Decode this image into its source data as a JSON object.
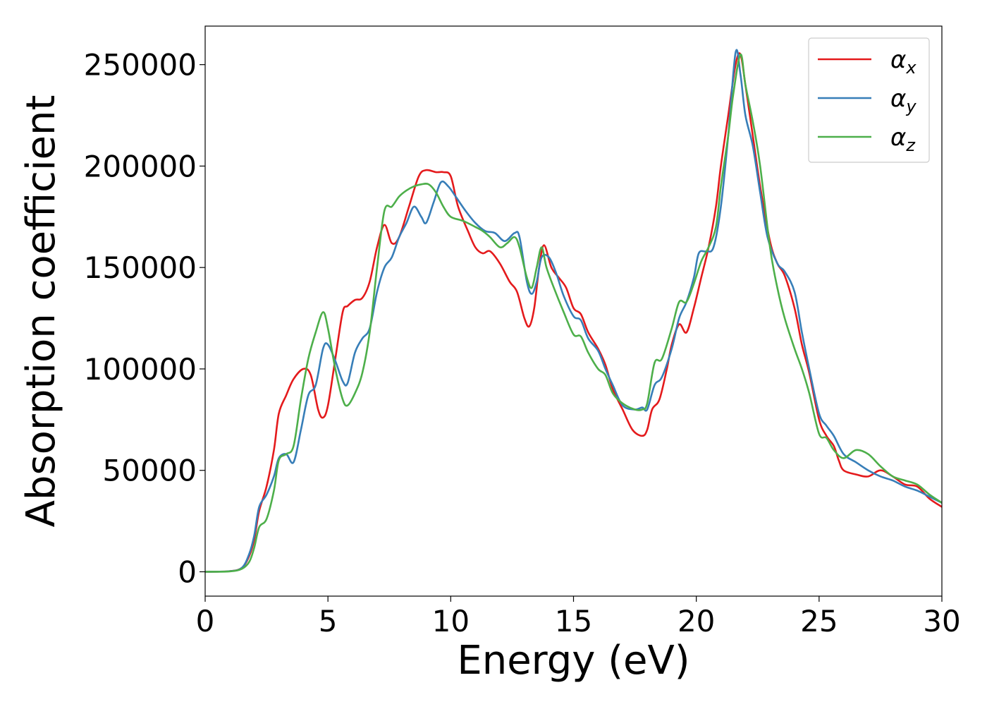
{
  "chart_data": {
    "type": "line",
    "title": "",
    "xlabel": "Energy (eV)",
    "ylabel": "Absorption coefficient",
    "xlim": [
      0,
      30
    ],
    "ylim": [
      -12000,
      269000
    ],
    "xticks": [
      0,
      5,
      10,
      15,
      20,
      25,
      30
    ],
    "xtick_labels": [
      "0",
      "5",
      "10",
      "15",
      "20",
      "25",
      "30"
    ],
    "yticks": [
      0,
      50000,
      100000,
      150000,
      200000,
      250000
    ],
    "ytick_labels": [
      "0",
      "50000",
      "100000",
      "150000",
      "200000",
      "250000"
    ],
    "grid": false,
    "legend_position": "top-right",
    "series": [
      {
        "name": "αx",
        "legend_symbol": "α",
        "legend_sub": "x",
        "color": "#e41a1c",
        "points": [
          [
            0,
            0
          ],
          [
            1,
            300
          ],
          [
            1.5,
            2000
          ],
          [
            1.8,
            8000
          ],
          [
            2.0,
            16000
          ],
          [
            2.2,
            30000
          ],
          [
            2.5,
            42000
          ],
          [
            2.8,
            60000
          ],
          [
            3.0,
            78000
          ],
          [
            3.3,
            87000
          ],
          [
            3.6,
            95000
          ],
          [
            4.0,
            100000
          ],
          [
            4.3,
            97000
          ],
          [
            4.6,
            80000
          ],
          [
            4.8,
            76000
          ],
          [
            5.0,
            82000
          ],
          [
            5.3,
            105000
          ],
          [
            5.6,
            128000
          ],
          [
            5.8,
            131000
          ],
          [
            6.1,
            134000
          ],
          [
            6.4,
            135000
          ],
          [
            6.7,
            143000
          ],
          [
            7.0,
            160000
          ],
          [
            7.3,
            171000
          ],
          [
            7.6,
            162000
          ],
          [
            7.9,
            165000
          ],
          [
            8.3,
            180000
          ],
          [
            8.7,
            195000
          ],
          [
            9.0,
            198000
          ],
          [
            9.4,
            197000
          ],
          [
            9.7,
            197000
          ],
          [
            10.0,
            195000
          ],
          [
            10.3,
            180000
          ],
          [
            10.7,
            168000
          ],
          [
            11.0,
            160000
          ],
          [
            11.3,
            157000
          ],
          [
            11.6,
            158000
          ],
          [
            12.0,
            152000
          ],
          [
            12.4,
            143000
          ],
          [
            12.7,
            138000
          ],
          [
            13.0,
            125000
          ],
          [
            13.2,
            121000
          ],
          [
            13.4,
            130000
          ],
          [
            13.6,
            150000
          ],
          [
            13.8,
            161000
          ],
          [
            14.1,
            150000
          ],
          [
            14.4,
            145000
          ],
          [
            14.7,
            140000
          ],
          [
            15.0,
            130000
          ],
          [
            15.3,
            127000
          ],
          [
            15.6,
            118000
          ],
          [
            16.0,
            110000
          ],
          [
            16.3,
            102000
          ],
          [
            16.6,
            90000
          ],
          [
            17.0,
            80000
          ],
          [
            17.4,
            70000
          ],
          [
            17.8,
            67000
          ],
          [
            18.0,
            70000
          ],
          [
            18.2,
            80000
          ],
          [
            18.5,
            85000
          ],
          [
            18.8,
            100000
          ],
          [
            19.0,
            112000
          ],
          [
            19.3,
            122000
          ],
          [
            19.6,
            118000
          ],
          [
            19.9,
            130000
          ],
          [
            20.2,
            145000
          ],
          [
            20.5,
            160000
          ],
          [
            20.8,
            180000
          ],
          [
            21.0,
            200000
          ],
          [
            21.3,
            225000
          ],
          [
            21.6,
            250000
          ],
          [
            21.8,
            255000
          ],
          [
            22.0,
            240000
          ],
          [
            22.3,
            215000
          ],
          [
            22.6,
            190000
          ],
          [
            23.0,
            163000
          ],
          [
            23.3,
            152000
          ],
          [
            23.6,
            146000
          ],
          [
            24.0,
            130000
          ],
          [
            24.3,
            112000
          ],
          [
            24.6,
            98000
          ],
          [
            25.0,
            75000
          ],
          [
            25.3,
            67000
          ],
          [
            25.6,
            62000
          ],
          [
            25.8,
            55000
          ],
          [
            26.0,
            50000
          ],
          [
            26.5,
            48000
          ],
          [
            27.0,
            47000
          ],
          [
            27.5,
            50000
          ],
          [
            28.0,
            47000
          ],
          [
            28.5,
            43000
          ],
          [
            29.0,
            42000
          ],
          [
            29.5,
            36000
          ],
          [
            30.0,
            32000
          ]
        ]
      },
      {
        "name": "αy",
        "legend_symbol": "α",
        "legend_sub": "y",
        "color": "#377eb8",
        "points": [
          [
            0,
            0
          ],
          [
            1,
            300
          ],
          [
            1.5,
            2000
          ],
          [
            1.8,
            9000
          ],
          [
            2.0,
            18000
          ],
          [
            2.2,
            32000
          ],
          [
            2.5,
            38000
          ],
          [
            2.8,
            47000
          ],
          [
            3.0,
            56000
          ],
          [
            3.3,
            58000
          ],
          [
            3.6,
            54000
          ],
          [
            3.9,
            70000
          ],
          [
            4.2,
            87000
          ],
          [
            4.5,
            92000
          ],
          [
            4.8,
            110000
          ],
          [
            5.0,
            112000
          ],
          [
            5.3,
            104000
          ],
          [
            5.6,
            94000
          ],
          [
            5.8,
            93000
          ],
          [
            6.1,
            108000
          ],
          [
            6.4,
            115000
          ],
          [
            6.7,
            120000
          ],
          [
            7.0,
            138000
          ],
          [
            7.3,
            150000
          ],
          [
            7.6,
            155000
          ],
          [
            7.9,
            165000
          ],
          [
            8.2,
            172000
          ],
          [
            8.5,
            180000
          ],
          [
            8.8,
            175000
          ],
          [
            9.0,
            172000
          ],
          [
            9.3,
            182000
          ],
          [
            9.6,
            192000
          ],
          [
            9.9,
            190000
          ],
          [
            10.2,
            185000
          ],
          [
            10.6,
            178000
          ],
          [
            11.0,
            172000
          ],
          [
            11.4,
            168000
          ],
          [
            11.8,
            167000
          ],
          [
            12.2,
            163000
          ],
          [
            12.6,
            167000
          ],
          [
            12.8,
            165000
          ],
          [
            13.1,
            143000
          ],
          [
            13.3,
            137000
          ],
          [
            13.5,
            143000
          ],
          [
            13.7,
            155000
          ],
          [
            14.0,
            155000
          ],
          [
            14.3,
            147000
          ],
          [
            14.6,
            136000
          ],
          [
            15.0,
            126000
          ],
          [
            15.3,
            124000
          ],
          [
            15.6,
            115000
          ],
          [
            16.0,
            109000
          ],
          [
            16.3,
            100000
          ],
          [
            16.6,
            92000
          ],
          [
            17.0,
            82000
          ],
          [
            17.5,
            80000
          ],
          [
            17.8,
            81000
          ],
          [
            18.0,
            80000
          ],
          [
            18.3,
            92000
          ],
          [
            18.6,
            96000
          ],
          [
            19.0,
            110000
          ],
          [
            19.3,
            125000
          ],
          [
            19.6,
            133000
          ],
          [
            19.9,
            145000
          ],
          [
            20.1,
            157000
          ],
          [
            20.4,
            158000
          ],
          [
            20.7,
            160000
          ],
          [
            21.0,
            180000
          ],
          [
            21.3,
            215000
          ],
          [
            21.6,
            256000
          ],
          [
            21.8,
            245000
          ],
          [
            22.0,
            225000
          ],
          [
            22.3,
            210000
          ],
          [
            22.6,
            187000
          ],
          [
            22.9,
            165000
          ],
          [
            23.3,
            152000
          ],
          [
            23.6,
            148000
          ],
          [
            24.0,
            138000
          ],
          [
            24.3,
            118000
          ],
          [
            24.6,
            100000
          ],
          [
            25.0,
            78000
          ],
          [
            25.3,
            72000
          ],
          [
            25.6,
            67000
          ],
          [
            26.0,
            58000
          ],
          [
            26.5,
            54000
          ],
          [
            27.0,
            50000
          ],
          [
            27.5,
            47000
          ],
          [
            28.0,
            45000
          ],
          [
            28.5,
            42000
          ],
          [
            29.0,
            40000
          ],
          [
            29.5,
            37000
          ],
          [
            30.0,
            34000
          ]
        ]
      },
      {
        "name": "αz",
        "legend_symbol": "α",
        "legend_sub": "z",
        "color": "#4daf4a",
        "points": [
          [
            0,
            0
          ],
          [
            1,
            200
          ],
          [
            1.5,
            1500
          ],
          [
            1.8,
            5000
          ],
          [
            2.0,
            12000
          ],
          [
            2.2,
            22000
          ],
          [
            2.5,
            26000
          ],
          [
            2.8,
            40000
          ],
          [
            3.0,
            55000
          ],
          [
            3.3,
            58000
          ],
          [
            3.6,
            62000
          ],
          [
            3.9,
            85000
          ],
          [
            4.2,
            105000
          ],
          [
            4.5,
            118000
          ],
          [
            4.8,
            128000
          ],
          [
            5.0,
            120000
          ],
          [
            5.3,
            100000
          ],
          [
            5.6,
            85000
          ],
          [
            5.8,
            82000
          ],
          [
            6.1,
            88000
          ],
          [
            6.4,
            98000
          ],
          [
            6.7,
            118000
          ],
          [
            7.0,
            150000
          ],
          [
            7.3,
            178000
          ],
          [
            7.6,
            180000
          ],
          [
            7.9,
            185000
          ],
          [
            8.2,
            188000
          ],
          [
            8.5,
            190000
          ],
          [
            8.8,
            191000
          ],
          [
            9.1,
            191000
          ],
          [
            9.4,
            187000
          ],
          [
            9.7,
            180000
          ],
          [
            10.0,
            175000
          ],
          [
            10.5,
            173000
          ],
          [
            11.0,
            170000
          ],
          [
            11.3,
            168000
          ],
          [
            11.6,
            165000
          ],
          [
            12.0,
            160000
          ],
          [
            12.3,
            162000
          ],
          [
            12.6,
            165000
          ],
          [
            12.8,
            160000
          ],
          [
            13.1,
            145000
          ],
          [
            13.3,
            140000
          ],
          [
            13.5,
            150000
          ],
          [
            13.7,
            160000
          ],
          [
            13.9,
            150000
          ],
          [
            14.2,
            140000
          ],
          [
            14.6,
            128000
          ],
          [
            15.0,
            117000
          ],
          [
            15.3,
            116000
          ],
          [
            15.6,
            108000
          ],
          [
            16.0,
            100000
          ],
          [
            16.3,
            97000
          ],
          [
            16.6,
            88000
          ],
          [
            17.0,
            83000
          ],
          [
            17.5,
            80000
          ],
          [
            17.8,
            80000
          ],
          [
            18.0,
            83000
          ],
          [
            18.3,
            103000
          ],
          [
            18.6,
            105000
          ],
          [
            19.0,
            120000
          ],
          [
            19.3,
            133000
          ],
          [
            19.6,
            133000
          ],
          [
            19.9,
            142000
          ],
          [
            20.2,
            153000
          ],
          [
            20.5,
            160000
          ],
          [
            20.8,
            170000
          ],
          [
            21.0,
            190000
          ],
          [
            21.3,
            215000
          ],
          [
            21.5,
            235000
          ],
          [
            21.8,
            255000
          ],
          [
            22.0,
            240000
          ],
          [
            22.3,
            222000
          ],
          [
            22.6,
            200000
          ],
          [
            23.0,
            160000
          ],
          [
            23.3,
            140000
          ],
          [
            23.6,
            125000
          ],
          [
            24.0,
            110000
          ],
          [
            24.3,
            100000
          ],
          [
            24.6,
            88000
          ],
          [
            25.0,
            68000
          ],
          [
            25.3,
            66000
          ],
          [
            25.6,
            60000
          ],
          [
            26.0,
            56000
          ],
          [
            26.5,
            60000
          ],
          [
            27.0,
            58000
          ],
          [
            27.5,
            52000
          ],
          [
            28.0,
            47000
          ],
          [
            28.5,
            45000
          ],
          [
            29.0,
            43000
          ],
          [
            29.5,
            38000
          ],
          [
            30.0,
            34000
          ]
        ]
      }
    ]
  }
}
